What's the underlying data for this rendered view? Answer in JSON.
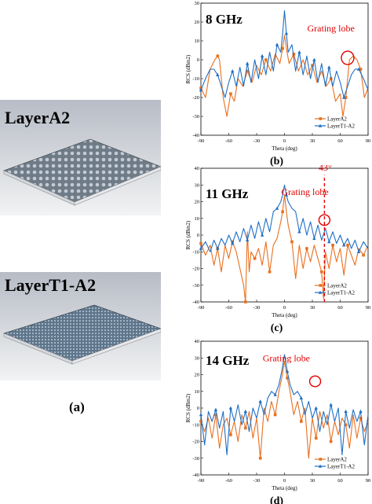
{
  "figure": {
    "models": [
      {
        "label": "LayerA2"
      },
      {
        "label": "LayerT1-A2"
      }
    ],
    "panel_a_label": "(a)"
  },
  "chart_data": [
    {
      "type": "line",
      "panel_label": "(b)",
      "title": "8 GHz",
      "xlabel": "Theta (deg)",
      "ylabel": "RCS (dBm2)",
      "xlim": [
        -90,
        90
      ],
      "ylim": [
        -40,
        30
      ],
      "xticks": [
        -90,
        -60,
        -30,
        0,
        30,
        60,
        90
      ],
      "yticks": [
        -40,
        -30,
        -20,
        -10,
        0,
        10,
        20,
        30
      ],
      "legend": "bottom-right",
      "colors": {
        "LayerA2": "#e8701e",
        "LayerT1-A2": "#1f6fc5"
      },
      "annotations": [
        {
          "text": "Grating lobe",
          "color": "#e00000"
        }
      ],
      "series": [
        {
          "name": "LayerA2",
          "x": [
            -90,
            -85,
            -80,
            -75,
            -72,
            -70,
            -66,
            -62,
            -58,
            -54,
            -50,
            -45,
            -40,
            -35,
            -30,
            -25,
            -20,
            -15,
            -10,
            -5,
            -2,
            0,
            2,
            5,
            10,
            15,
            20,
            25,
            30,
            35,
            40,
            45,
            50,
            55,
            60,
            63,
            66,
            70,
            74,
            78,
            82,
            86,
            90
          ],
          "y": [
            -15,
            -20,
            -5,
            0,
            2,
            0,
            -20,
            -30,
            -18,
            -22,
            -10,
            -14,
            -6,
            -12,
            -3,
            -8,
            0,
            -6,
            3,
            -2,
            6,
            13,
            6,
            -2,
            3,
            -6,
            0,
            -8,
            -3,
            -12,
            -6,
            -14,
            -10,
            -22,
            -18,
            -30,
            -20,
            0,
            2,
            0,
            -5,
            -20,
            -15
          ]
        },
        {
          "name": "LayerT1-A2",
          "x": [
            -90,
            -85,
            -80,
            -76,
            -72,
            -68,
            -64,
            -60,
            -56,
            -52,
            -48,
            -44,
            -40,
            -36,
            -32,
            -28,
            -24,
            -20,
            -16,
            -12,
            -8,
            -4,
            -2,
            0,
            2,
            4,
            8,
            12,
            16,
            20,
            24,
            28,
            32,
            36,
            40,
            44,
            48,
            52,
            56,
            60,
            64,
            68,
            72,
            76,
            80,
            85,
            90
          ],
          "y": [
            -16,
            -10,
            -5,
            -5,
            -8,
            -14,
            -20,
            -12,
            -6,
            -14,
            -4,
            -14,
            -2,
            -12,
            0,
            -10,
            2,
            -8,
            4,
            -6,
            8,
            4,
            14,
            26,
            14,
            4,
            8,
            -6,
            4,
            -8,
            2,
            -10,
            0,
            -12,
            -2,
            -14,
            -4,
            -14,
            -6,
            -12,
            -20,
            -14,
            -8,
            -5,
            -5,
            -10,
            -16
          ]
        }
      ]
    },
    {
      "type": "line",
      "panel_label": "(c)",
      "title": "11 GHz",
      "xlabel": "Theta (deg)",
      "ylabel": "RCS (dBm2)",
      "xlim": [
        -90,
        90
      ],
      "ylim": [
        -40,
        40
      ],
      "xticks": [
        -90,
        -60,
        -30,
        0,
        30,
        60,
        90
      ],
      "yticks": [
        -40,
        -30,
        -20,
        -10,
        0,
        10,
        20,
        30,
        40
      ],
      "legend": "bottom-right",
      "colors": {
        "LayerA2": "#e8701e",
        "LayerT1-A2": "#1f6fc5"
      },
      "annotations": [
        {
          "text": "Grating lobe",
          "color": "#e00000"
        },
        {
          "text": "43°",
          "color": "#e00000",
          "x": 43
        }
      ],
      "series": [
        {
          "name": "LayerA2",
          "x": [
            -90,
            -85,
            -80,
            -76,
            -72,
            -68,
            -64,
            -60,
            -56,
            -52,
            -48,
            -44,
            -42,
            -40,
            -38,
            -36,
            -32,
            -28,
            -24,
            -20,
            -16,
            -12,
            -8,
            -4,
            -2,
            0,
            2,
            4,
            8,
            12,
            16,
            20,
            24,
            28,
            32,
            36,
            40,
            42,
            44,
            48,
            52,
            56,
            60,
            64,
            68,
            72,
            76,
            80,
            85,
            90
          ],
          "y": [
            -5,
            -12,
            -6,
            -18,
            -8,
            -22,
            -6,
            -14,
            -4,
            -10,
            -20,
            -30,
            -40,
            2,
            -22,
            -10,
            -14,
            -8,
            -18,
            -4,
            -22,
            -6,
            -2,
            8,
            14,
            24,
            14,
            6,
            -4,
            -26,
            -6,
            -20,
            -8,
            -16,
            -6,
            -14,
            -22,
            -38,
            -10,
            -20,
            -6,
            -16,
            -8,
            -24,
            -6,
            -12,
            -18,
            -8,
            -12,
            -6
          ]
        },
        {
          "name": "LayerT1-A2",
          "x": [
            -90,
            -85,
            -80,
            -76,
            -72,
            -68,
            -64,
            -60,
            -56,
            -52,
            -48,
            -44,
            -40,
            -36,
            -32,
            -28,
            -24,
            -20,
            -16,
            -12,
            -8,
            -4,
            -2,
            0,
            2,
            4,
            8,
            12,
            16,
            20,
            24,
            28,
            32,
            36,
            40,
            44,
            48,
            52,
            56,
            60,
            64,
            68,
            72,
            76,
            80,
            85,
            90
          ],
          "y": [
            -8,
            -4,
            -10,
            -3,
            -8,
            -2,
            -6,
            0,
            -5,
            2,
            -4,
            4,
            -3,
            6,
            -2,
            8,
            0,
            10,
            2,
            14,
            16,
            20,
            24,
            30,
            24,
            20,
            16,
            14,
            2,
            10,
            0,
            8,
            -2,
            6,
            -3,
            4,
            -4,
            2,
            -5,
            0,
            -6,
            -2,
            -8,
            -3,
            -10,
            -4,
            -8
          ]
        }
      ]
    },
    {
      "type": "line",
      "panel_label": "(d)",
      "title": "14 GHz",
      "xlabel": "Theta (deg)",
      "ylabel": "RCS (dBm2)",
      "xlim": [
        -90,
        90
      ],
      "ylim": [
        -40,
        40
      ],
      "xticks": [
        -90,
        -60,
        -30,
        0,
        30,
        60,
        90
      ],
      "yticks": [
        -40,
        -30,
        -20,
        -10,
        0,
        10,
        20,
        30,
        40
      ],
      "legend": "bottom-right",
      "colors": {
        "LayerA2": "#e8701e",
        "LayerT1-A2": "#1f6fc5"
      },
      "annotations": [
        {
          "text": "Grating lobe",
          "color": "#e00000"
        }
      ],
      "series": [
        {
          "name": "LayerA2",
          "x": [
            -90,
            -86,
            -82,
            -78,
            -74,
            -70,
            -66,
            -62,
            -58,
            -54,
            -50,
            -46,
            -42,
            -38,
            -34,
            -30,
            -26,
            -22,
            -18,
            -14,
            -10,
            -6,
            -3,
            0,
            3,
            6,
            10,
            14,
            18,
            22,
            26,
            30,
            34,
            38,
            42,
            46,
            50,
            54,
            58,
            62,
            66,
            70,
            74,
            78,
            82,
            86,
            90
          ],
          "y": [
            -8,
            -14,
            -6,
            -18,
            -4,
            -24,
            -10,
            -6,
            -16,
            -8,
            -20,
            -4,
            -12,
            -2,
            -18,
            -6,
            -30,
            0,
            -8,
            4,
            -4,
            10,
            18,
            28,
            18,
            10,
            -4,
            4,
            -8,
            0,
            -30,
            -6,
            -18,
            -2,
            -12,
            -4,
            -20,
            -8,
            -16,
            -6,
            -10,
            -24,
            -4,
            -18,
            -6,
            -14,
            -8
          ]
        },
        {
          "name": "LayerT1-A2",
          "x": [
            -90,
            -86,
            -82,
            -78,
            -74,
            -70,
            -66,
            -62,
            -58,
            -54,
            -50,
            -46,
            -42,
            -38,
            -34,
            -30,
            -26,
            -22,
            -18,
            -14,
            -10,
            -6,
            -3,
            0,
            3,
            6,
            10,
            14,
            18,
            22,
            26,
            30,
            34,
            38,
            42,
            46,
            50,
            54,
            58,
            62,
            66,
            70,
            74,
            78,
            82,
            86,
            90
          ],
          "y": [
            -4,
            -22,
            -2,
            -8,
            -1,
            -12,
            -2,
            -28,
            0,
            -8,
            2,
            -10,
            -2,
            -14,
            0,
            -6,
            4,
            -4,
            6,
            10,
            8,
            14,
            22,
            32,
            22,
            14,
            8,
            10,
            6,
            -4,
            4,
            -6,
            0,
            -14,
            -2,
            -10,
            2,
            -8,
            0,
            -28,
            -2,
            -12,
            -1,
            -8,
            -2,
            -22,
            -4
          ]
        }
      ]
    }
  ]
}
